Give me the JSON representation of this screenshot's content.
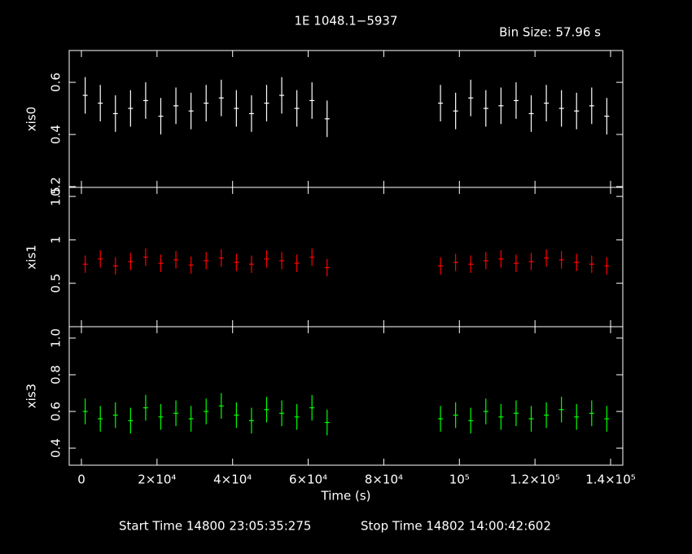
{
  "title": "1E 1048.1−5937",
  "bin_size": "Bin Size: 57.96 s",
  "start_time": "Start Time 14800 23:05:35:275",
  "stop_time": "Stop Time 14802 14:00:42:602",
  "chart_data": [
    {
      "type": "errorbar",
      "ylabel": "xis0",
      "color": "#ffffff",
      "x": [
        1000,
        5000,
        9000,
        13000,
        17000,
        21000,
        25000,
        29000,
        33000,
        37000,
        41000,
        45000,
        49000,
        53000,
        57000,
        61000,
        65000,
        95000,
        99000,
        103000,
        107000,
        111000,
        115000,
        119000,
        123000,
        127000,
        131000,
        135000,
        139000
      ],
      "values": [
        0.55,
        0.52,
        0.48,
        0.5,
        0.53,
        0.47,
        0.51,
        0.49,
        0.52,
        0.54,
        0.5,
        0.48,
        0.52,
        0.55,
        0.5,
        0.53,
        0.46,
        0.52,
        0.49,
        0.54,
        0.5,
        0.51,
        0.53,
        0.48,
        0.52,
        0.5,
        0.49,
        0.51,
        0.47
      ],
      "errors": [
        0.07,
        0.07,
        0.07,
        0.07,
        0.07,
        0.07,
        0.07,
        0.07,
        0.07,
        0.07,
        0.07,
        0.07,
        0.07,
        0.07,
        0.07,
        0.07,
        0.07,
        0.07,
        0.07,
        0.07,
        0.07,
        0.07,
        0.07,
        0.07,
        0.07,
        0.07,
        0.07,
        0.07,
        0.07
      ],
      "xlim": [
        -3230,
        143230
      ],
      "xticks": [
        0,
        20000,
        40000,
        60000,
        80000,
        100000,
        120000,
        140000
      ],
      "ylim": [
        0.197,
        0.722
      ],
      "yticks": [
        0.2,
        0.4,
        0.6
      ]
    },
    {
      "type": "errorbar",
      "ylabel": "xis1",
      "color": "#ff0000",
      "x": [
        1000,
        5000,
        9000,
        13000,
        17000,
        21000,
        25000,
        29000,
        33000,
        37000,
        41000,
        45000,
        49000,
        53000,
        57000,
        61000,
        65000,
        95000,
        99000,
        103000,
        107000,
        111000,
        115000,
        119000,
        123000,
        127000,
        131000,
        135000,
        139000
      ],
      "values": [
        0.72,
        0.78,
        0.7,
        0.75,
        0.8,
        0.73,
        0.77,
        0.71,
        0.76,
        0.79,
        0.74,
        0.72,
        0.78,
        0.76,
        0.73,
        0.8,
        0.68,
        0.7,
        0.74,
        0.72,
        0.76,
        0.78,
        0.73,
        0.75,
        0.79,
        0.77,
        0.74,
        0.72,
        0.7
      ],
      "errors": [
        0.1,
        0.1,
        0.1,
        0.1,
        0.1,
        0.1,
        0.1,
        0.1,
        0.1,
        0.1,
        0.1,
        0.1,
        0.1,
        0.1,
        0.1,
        0.1,
        0.1,
        0.1,
        0.1,
        0.1,
        0.1,
        0.1,
        0.1,
        0.1,
        0.1,
        0.1,
        0.1,
        0.1,
        0.1
      ],
      "xlim": [
        -3230,
        143230
      ],
      "xticks": [
        0,
        20000,
        40000,
        60000,
        80000,
        100000,
        120000,
        140000
      ],
      "ylim": [
        0,
        1.604
      ],
      "yticks": [
        0.5,
        1,
        1.5
      ]
    },
    {
      "type": "errorbar",
      "ylabel": "xis3",
      "color": "#00ff00",
      "xlabel": "Time (s)",
      "x": [
        1000,
        5000,
        9000,
        13000,
        17000,
        21000,
        25000,
        29000,
        33000,
        37000,
        41000,
        45000,
        49000,
        53000,
        57000,
        61000,
        65000,
        95000,
        99000,
        103000,
        107000,
        111000,
        115000,
        119000,
        123000,
        127000,
        131000,
        135000,
        139000
      ],
      "values": [
        0.6,
        0.56,
        0.58,
        0.55,
        0.62,
        0.57,
        0.59,
        0.56,
        0.6,
        0.63,
        0.58,
        0.55,
        0.61,
        0.59,
        0.57,
        0.62,
        0.54,
        0.56,
        0.58,
        0.55,
        0.6,
        0.57,
        0.59,
        0.56,
        0.58,
        0.61,
        0.57,
        0.59,
        0.56
      ],
      "errors": [
        0.07,
        0.07,
        0.07,
        0.07,
        0.07,
        0.07,
        0.07,
        0.07,
        0.07,
        0.07,
        0.07,
        0.07,
        0.07,
        0.07,
        0.07,
        0.07,
        0.07,
        0.07,
        0.07,
        0.07,
        0.07,
        0.07,
        0.07,
        0.07,
        0.07,
        0.07,
        0.07,
        0.07,
        0.07
      ],
      "xlim": [
        -3230,
        143230
      ],
      "xticks": [
        0,
        {
          "value": 20000,
          "label": "2×10⁴"
        },
        {
          "value": 40000,
          "label": "4×10⁴"
        },
        {
          "value": 60000,
          "label": "6×10⁴"
        },
        {
          "value": 80000,
          "label": "8×10⁴"
        },
        {
          "value": 100000,
          "label": "10⁵"
        },
        {
          "value": 120000,
          "label": "1.2×10⁵"
        },
        {
          "value": 140000,
          "label": "1.4×10⁵"
        }
      ],
      "ylim": [
        0.307,
        1.062
      ],
      "yticks": [
        0.4,
        0.6,
        0.8,
        {
          "value": 1,
          "label": "1.0"
        }
      ]
    }
  ]
}
